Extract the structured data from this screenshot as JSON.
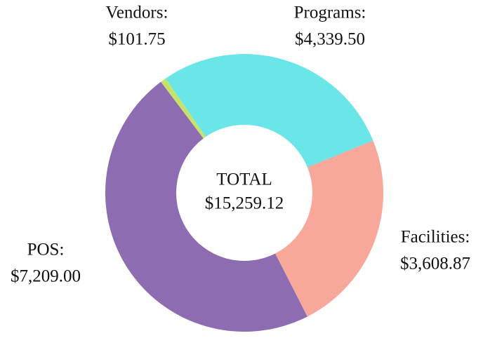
{
  "chart_data": {
    "type": "donut",
    "categories": [
      "Programs:",
      "Facilities:",
      "POS:",
      "Vendors:"
    ],
    "values": [
      4339.5,
      3608.87,
      7209.0,
      101.75
    ],
    "value_labels": [
      "$4,339.50",
      "$3,608.87",
      "$7,209.00",
      "$101.75"
    ],
    "colors": [
      "#6ae5e8",
      "#f7a89b",
      "#8e6cb1",
      "#c5e26a"
    ],
    "center_text": [
      "TOTAL",
      "$15,259.12"
    ]
  }
}
